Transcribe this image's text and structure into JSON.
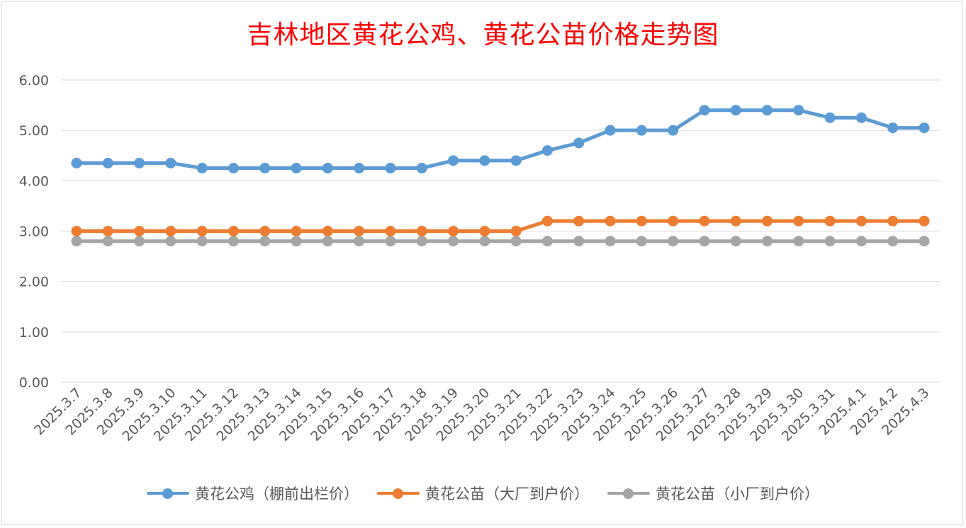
{
  "chart_data": {
    "type": "line",
    "title": "吉林地区黄花公鸡、黄花公苗价格走势图",
    "xlabel": "",
    "ylabel": "",
    "ylim": [
      0,
      6
    ],
    "yticks": [
      "0.00",
      "1.00",
      "2.00",
      "3.00",
      "4.00",
      "5.00",
      "6.00"
    ],
    "grid": true,
    "legend_position": "bottom",
    "categories": [
      "2025.3.7",
      "2025.3.8",
      "2025.3.9",
      "2025.3.10",
      "2025.3.11",
      "2025.3.12",
      "2025.3.13",
      "2025.3.14",
      "2025.3.15",
      "2025.3.16",
      "2025.3.17",
      "2025.3.18",
      "2025.3.19",
      "2025.3.20",
      "2025.3.21",
      "2025.3.22",
      "2025.3.23",
      "2025.3.24",
      "2025.3.25",
      "2025.3.26",
      "2025.3.27",
      "2025.3.28",
      "2025.3.29",
      "2025.3.30",
      "2025.3.31",
      "2025.4.1",
      "2025.4.2",
      "2025.4.3"
    ],
    "series": [
      {
        "name": "黄花公鸡（棚前出栏价）",
        "color": "#5b9bd5",
        "values": [
          4.35,
          4.35,
          4.35,
          4.35,
          4.25,
          4.25,
          4.25,
          4.25,
          4.25,
          4.25,
          4.25,
          4.25,
          4.4,
          4.4,
          4.4,
          4.6,
          4.75,
          5.0,
          5.0,
          5.0,
          5.4,
          5.4,
          5.4,
          5.4,
          5.25,
          5.25,
          5.05,
          5.05
        ]
      },
      {
        "name": "黄花公苗（大厂到户价）",
        "color": "#ed7d31",
        "values": [
          3.0,
          3.0,
          3.0,
          3.0,
          3.0,
          3.0,
          3.0,
          3.0,
          3.0,
          3.0,
          3.0,
          3.0,
          3.0,
          3.0,
          3.0,
          3.2,
          3.2,
          3.2,
          3.2,
          3.2,
          3.2,
          3.2,
          3.2,
          3.2,
          3.2,
          3.2,
          3.2,
          3.2
        ]
      },
      {
        "name": "黄花公苗（小厂到户价）",
        "color": "#a5a5a5",
        "values": [
          2.8,
          2.8,
          2.8,
          2.8,
          2.8,
          2.8,
          2.8,
          2.8,
          2.8,
          2.8,
          2.8,
          2.8,
          2.8,
          2.8,
          2.8,
          2.8,
          2.8,
          2.8,
          2.8,
          2.8,
          2.8,
          2.8,
          2.8,
          2.8,
          2.8,
          2.8,
          2.8,
          2.8
        ]
      }
    ]
  }
}
